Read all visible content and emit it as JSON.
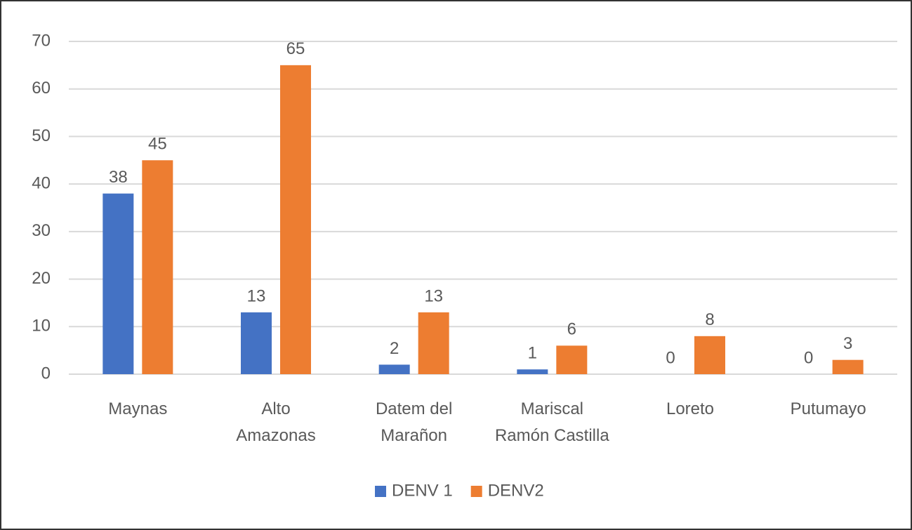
{
  "chart_data": {
    "type": "bar",
    "categories": [
      "Maynas",
      "Alto\nAmazonas",
      "Datem del\nMarañon",
      "Mariscal\nRamón Castilla",
      "Loreto",
      "Putumayo"
    ],
    "series": [
      {
        "name": "DENV 1",
        "color": "#4472c4",
        "values": [
          38,
          13,
          2,
          1,
          0,
          0
        ]
      },
      {
        "name": "DENV2",
        "color": "#ed7d31",
        "values": [
          45,
          65,
          13,
          6,
          8,
          3
        ]
      }
    ],
    "ylim": [
      0,
      70
    ],
    "yticks": [
      0,
      10,
      20,
      30,
      40,
      50,
      60,
      70
    ],
    "grid": true,
    "legend": "bottom"
  }
}
